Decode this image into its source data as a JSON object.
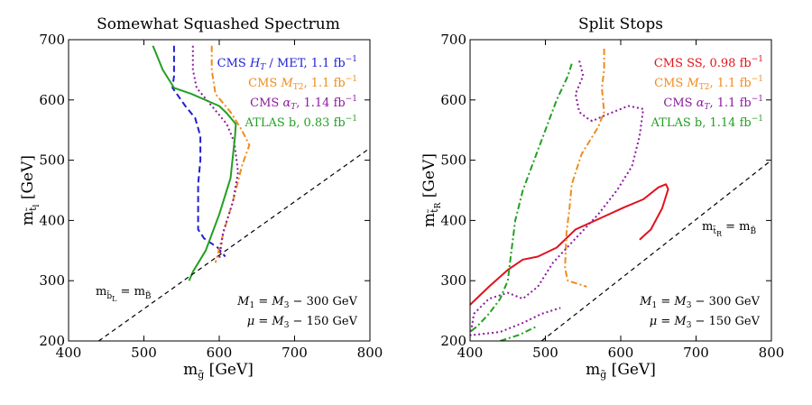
{
  "chart_data": [
    {
      "type": "line",
      "title": "Somewhat Squashed Spectrum",
      "xlabel": "m_g̃  [GeV]",
      "ylabel": "m_t̃_l  [GeV]",
      "xlim": [
        400,
        800
      ],
      "ylim": [
        200,
        700
      ],
      "xticks": [
        "400",
        "500",
        "600",
        "700",
        "800"
      ],
      "yticks": [
        "200",
        "300",
        "400",
        "500",
        "600",
        "700"
      ],
      "legend": [
        {
          "text": "CMS H_T / MET,  1.1 fb⁻¹",
          "color": "#1f1fd6"
        },
        {
          "text": "CMS M_T2,  1.1 fb⁻¹",
          "color": "#f08c1e"
        },
        {
          "text": "CMS α_T,  1.14 fb⁻¹",
          "color": "#8b1a9e"
        },
        {
          "text": "ATLAS b,  0.83 fb⁻¹",
          "color": "#22a022"
        }
      ],
      "annotations": [
        "M₁ = M₃ − 300 GeV",
        "μ = M₃ − 150 GeV"
      ],
      "diag_label": "m_b̃_L = m_B̃",
      "series": [
        {
          "name": "CMS HT/MET",
          "color": "#1f1fd6",
          "dash": "7,4",
          "x": [
            540,
            540,
            538,
            555,
            568,
            575,
            575,
            572,
            572,
            580,
            598,
            608
          ],
          "y": [
            690,
            640,
            620,
            590,
            570,
            540,
            500,
            460,
            385,
            370,
            355,
            340
          ]
        },
        {
          "name": "CMS MT2",
          "color": "#f08c1e",
          "dash": "7,3,2,3",
          "x": [
            590,
            590,
            595,
            615,
            630,
            640,
            630,
            620,
            608,
            595
          ],
          "y": [
            690,
            650,
            610,
            580,
            550,
            525,
            490,
            440,
            390,
            330
          ]
        },
        {
          "name": "CMS alphaT",
          "color": "#8b1a9e",
          "dash": "2,3",
          "x": [
            565,
            565,
            570,
            590,
            610,
            620,
            625,
            618,
            605,
            600
          ],
          "y": [
            690,
            650,
            620,
            590,
            560,
            530,
            480,
            430,
            380,
            335
          ]
        },
        {
          "name": "ATLAS b",
          "color": "#22a022",
          "dash": "",
          "x": [
            512,
            525,
            540,
            563,
            600,
            610,
            622,
            621,
            615,
            600,
            582,
            565,
            560
          ],
          "y": [
            690,
            650,
            620,
            610,
            590,
            578,
            560,
            540,
            470,
            410,
            350,
            315,
            300
          ]
        },
        {
          "name": "diag",
          "color": "#000000",
          "dash": "5,4",
          "width": 1.2,
          "x": [
            440,
            800
          ],
          "y": [
            200,
            520
          ]
        }
      ]
    },
    {
      "type": "line",
      "title": "Split Stops",
      "xlabel": "m_g̃  [GeV]",
      "ylabel": "m_t̃_R  [GeV]",
      "xlim": [
        400,
        800
      ],
      "ylim": [
        200,
        700
      ],
      "xticks": [
        "400",
        "500",
        "600",
        "700",
        "800"
      ],
      "yticks": [
        "200",
        "300",
        "400",
        "500",
        "600",
        "700"
      ],
      "legend": [
        {
          "text": "CMS SS,  0.98 fb⁻¹",
          "color": "#e0121c"
        },
        {
          "text": "CMS M_T2,  1.1 fb⁻¹",
          "color": "#f08c1e"
        },
        {
          "text": "CMS α_T,  1.1 fb⁻¹",
          "color": "#8b1a9e"
        },
        {
          "text": "ATLAS b,  1.14 fb⁻¹",
          "color": "#22a022"
        }
      ],
      "annotations": [
        "M₁ = M₃ − 300 GeV",
        "μ = M₃ − 150 GeV"
      ],
      "diag_label": "m_t̃_R = m_B̃",
      "series": [
        {
          "name": "CMS SS",
          "color": "#e0121c",
          "dash": "",
          "x": [
            400,
            425,
            450,
            470,
            490,
            515,
            540,
            575,
            605,
            630,
            650,
            660,
            663,
            655,
            640,
            625
          ],
          "y": [
            260,
            290,
            318,
            335,
            340,
            355,
            385,
            405,
            422,
            435,
            455,
            460,
            452,
            420,
            385,
            368
          ]
        },
        {
          "name": "CMS MT2",
          "color": "#f08c1e",
          "dash": "7,3,2,3",
          "x": [
            578,
            578,
            575,
            578,
            570,
            548,
            535,
            532,
            528,
            526,
            530,
            555
          ],
          "y": [
            685,
            650,
            620,
            580,
            555,
            510,
            460,
            420,
            380,
            320,
            300,
            290
          ]
        },
        {
          "name": "CMS alphaT",
          "color": "#8b1a9e",
          "dash": "2,3",
          "x": [
            545,
            550,
            540,
            545,
            555,
            562,
            580,
            610,
            630,
            625,
            615,
            595,
            570,
            540,
            510,
            490,
            470,
            450,
            425,
            405,
            400
          ],
          "y": [
            665,
            640,
            610,
            580,
            570,
            565,
            575,
            590,
            585,
            540,
            490,
            450,
            410,
            370,
            330,
            290,
            270,
            280,
            270,
            245,
            205
          ]
        },
        {
          "name": "CMS alphaT lower",
          "color": "#8b1a9e",
          "dash": "2,3",
          "x": [
            405,
            440,
            470,
            495,
            520
          ],
          "y": [
            210,
            215,
            230,
            245,
            255
          ]
        },
        {
          "name": "ATLAS b",
          "color": "#22a022",
          "dash": "7,3,2,3",
          "x": [
            535,
            530,
            515,
            500,
            485,
            470,
            460,
            455,
            450,
            440,
            425,
            410,
            400
          ],
          "y": [
            660,
            640,
            600,
            550,
            500,
            450,
            400,
            350,
            300,
            270,
            245,
            225,
            215
          ]
        },
        {
          "name": "ATLAS b lower",
          "color": "#22a022",
          "dash": "7,3,2,3",
          "x": [
            440,
            465,
            490
          ],
          "y": [
            200,
            210,
            225
          ]
        },
        {
          "name": "diag",
          "color": "#000000",
          "dash": "5,4",
          "width": 1.2,
          "x": [
            495,
            800
          ],
          "y": [
            200,
            500
          ]
        }
      ]
    }
  ]
}
